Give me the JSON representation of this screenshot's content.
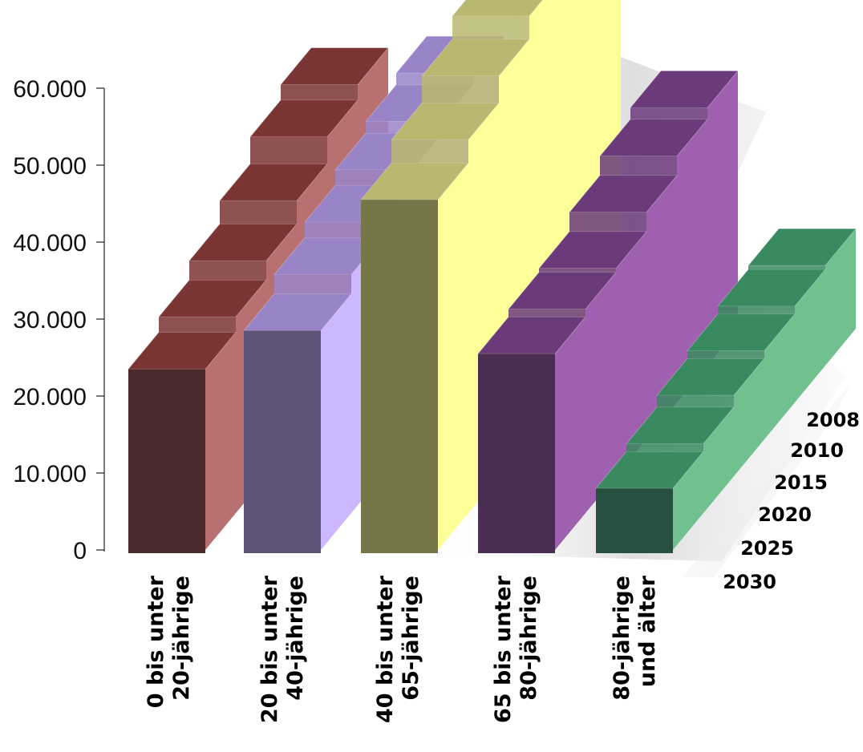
{
  "chart_data": {
    "type": "bar",
    "subtype": "3d-stepped-bars",
    "title": "",
    "xlabel": "",
    "ylabel": "",
    "ylim": [
      0,
      60000
    ],
    "yticks": [
      0,
      10000,
      20000,
      30000,
      40000,
      50000,
      60000
    ],
    "ytick_labels": [
      "0",
      "10.000",
      "20.000",
      "30.000",
      "40.000",
      "50.000",
      "60.000"
    ],
    "categories": [
      "0 bis unter 20-jährige",
      "20 bis unter 40-jährige",
      "40 bis unter 65-jährige",
      "65 bis unter 80-jährige",
      "80-jährige und älter"
    ],
    "category_label_lines": [
      [
        "0 bis unter",
        "20-jährige"
      ],
      [
        "20 bis unter",
        "40-jährige"
      ],
      [
        "40 bis unter",
        "65-jährige"
      ],
      [
        "65 bis unter",
        "80-jährige"
      ],
      [
        "80-jährige",
        "und älter"
      ]
    ],
    "series_labels": [
      "2008",
      "2010",
      "2015",
      "2020",
      "2025",
      "2030"
    ],
    "series": [
      {
        "name": "2030",
        "values": [
          23500,
          28500,
          45500,
          25500,
          8000
        ]
      },
      {
        "name": "2025",
        "values": [
          25500,
          31000,
          48500,
          26500,
          9000
        ]
      },
      {
        "name": "2020",
        "values": [
          28000,
          33000,
          52000,
          27000,
          10500
        ]
      },
      {
        "name": "2015",
        "values": [
          31000,
          35000,
          55000,
          29500,
          11500
        ]
      },
      {
        "name": "2010",
        "values": [
          34500,
          36500,
          57500,
          32000,
          12500
        ]
      },
      {
        "name": "2008",
        "values": [
          36500,
          38000,
          59000,
          33500,
          13000
        ]
      }
    ],
    "colors": {
      "front": [
        "#4a2a2a",
        "#5e5478",
        "#767648",
        "#4a2e52",
        "#285040"
      ],
      "top": [
        "#7a3434",
        "#9a84c8",
        "#b8b870",
        "#6a3a7a",
        "#3a8a60"
      ],
      "side": [
        "#b87070",
        "#cdb8ff",
        "#ffff99",
        "#a060b0",
        "#70c090"
      ],
      "backdrop": "#e8e8e8"
    },
    "grid": false,
    "legend": "none"
  }
}
